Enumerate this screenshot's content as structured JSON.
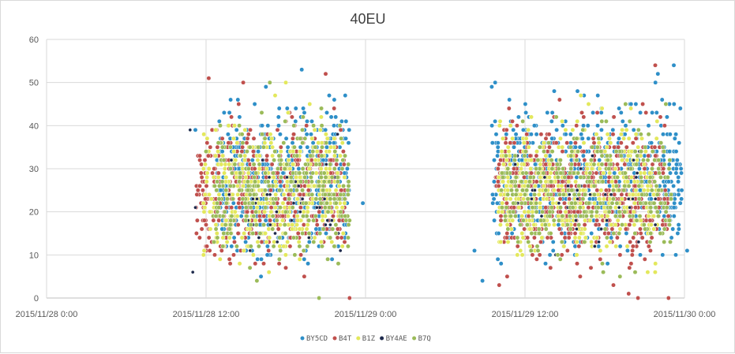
{
  "chart_data": {
    "type": "scatter",
    "title": "40EU",
    "xlabel": "",
    "ylabel": "",
    "x_ticks": [
      "2015/11/28 0:00",
      "2015/11/28 12:00",
      "2015/11/29 0:00",
      "2015/11/29 12:00",
      "2015/11/30 0:00"
    ],
    "x_range_hours": [
      0,
      48
    ],
    "x_tick_step_hours": 12,
    "ylim": [
      0,
      60
    ],
    "y_ticks": [
      0,
      10,
      20,
      30,
      40,
      50,
      60
    ],
    "grid": true,
    "legend_position": "bottom",
    "series": [
      {
        "name": "BY5CD",
        "color": "#2e8fc8",
        "clusters": [
          {
            "x_from": 12.8,
            "x_to": 22.8,
            "y_from": 3,
            "y_to": 50,
            "count": 520
          },
          {
            "x_from": 33.5,
            "x_to": 47.8,
            "y_from": 4,
            "y_to": 50,
            "count": 620
          }
        ],
        "points": [
          [
            16.5,
            49
          ],
          [
            19.2,
            53
          ],
          [
            11.2,
            39
          ],
          [
            33.5,
            49
          ],
          [
            47.2,
            54
          ],
          [
            46.0,
            52
          ],
          [
            32.2,
            11
          ],
          [
            32.8,
            4
          ],
          [
            34.2,
            29
          ],
          [
            48.2,
            11
          ],
          [
            23.8,
            22
          ]
        ]
      },
      {
        "name": "B4T",
        "color": "#c0504d",
        "clusters": [
          {
            "x_from": 11.2,
            "x_to": 22.5,
            "y_from": 3,
            "y_to": 45,
            "count": 430
          },
          {
            "x_from": 33.8,
            "x_to": 46.8,
            "y_from": 1,
            "y_to": 45,
            "count": 560
          }
        ],
        "points": [
          [
            12.2,
            51
          ],
          [
            14.8,
            50
          ],
          [
            21.0,
            52
          ],
          [
            34.8,
            44
          ],
          [
            45.8,
            54
          ],
          [
            38.6,
            46
          ],
          [
            45.1,
            43
          ],
          [
            44.5,
            0
          ],
          [
            46.8,
            0
          ],
          [
            43.8,
            1
          ],
          [
            22.8,
            0
          ]
        ]
      },
      {
        "name": "B1Z",
        "color": "#e3e85c",
        "clusters": [
          {
            "x_from": 11.8,
            "x_to": 22.5,
            "y_from": 3,
            "y_to": 45,
            "count": 380
          },
          {
            "x_from": 34.0,
            "x_to": 46.0,
            "y_from": 3,
            "y_to": 45,
            "count": 430
          }
        ],
        "points": [
          [
            18.0,
            50
          ],
          [
            40.2,
            47
          ],
          [
            17.2,
            47
          ],
          [
            41.8,
            44
          ],
          [
            19.8,
            45
          ]
        ]
      },
      {
        "name": "BY4AE",
        "color": "#1f2b4d",
        "clusters": [
          {
            "x_from": 13.2,
            "x_to": 22.2,
            "y_from": 4,
            "y_to": 38,
            "count": 45
          },
          {
            "x_from": 35.0,
            "x_to": 46.0,
            "y_from": 4,
            "y_to": 38,
            "count": 50
          }
        ],
        "points": [
          [
            11.2,
            21
          ],
          [
            10.8,
            39
          ],
          [
            11.0,
            6
          ],
          [
            21.9,
            38
          ],
          [
            44.6,
            34
          ]
        ]
      },
      {
        "name": "B7Q",
        "color": "#9bbb59",
        "clusters": [
          {
            "x_from": 12.5,
            "x_to": 22.8,
            "y_from": 3,
            "y_to": 45,
            "count": 300
          },
          {
            "x_from": 34.2,
            "x_to": 47.0,
            "y_from": 3,
            "y_to": 45,
            "count": 330
          }
        ],
        "points": [
          [
            16.8,
            50
          ],
          [
            20.5,
            0
          ],
          [
            12.0,
            34
          ],
          [
            46.6,
            45
          ]
        ]
      }
    ]
  }
}
